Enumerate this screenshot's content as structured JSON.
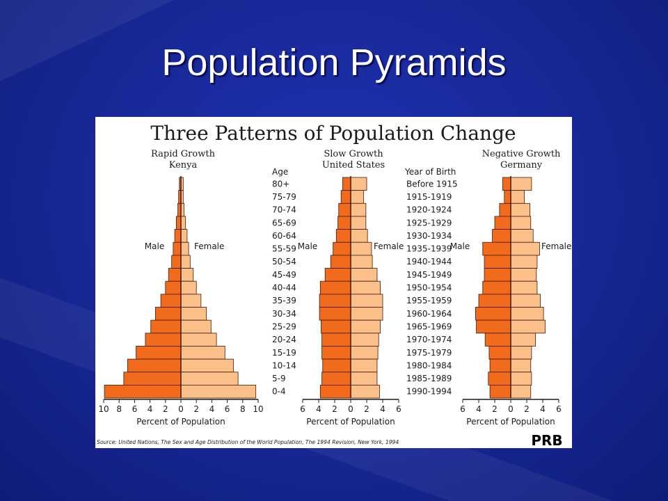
{
  "slide": {
    "title": "Population Pyramids"
  },
  "colors": {
    "male": "#f26b1d",
    "female": "#fbbf8a",
    "outline": "#3b1c0c",
    "ink": "#1a1a1a"
  },
  "chart_data": {
    "title": "Three Patterns of Population Change",
    "source": "Source: United Nations, The Sex and Age Distribution of the World Population, The 1994 Revision, New York, 1994",
    "logo_text": "PRB",
    "age_header": "Age",
    "birth_header": "Year of Birth",
    "age_groups": [
      "80+",
      "75-79",
      "70-74",
      "65-69",
      "60-64",
      "55-59",
      "50-54",
      "45-49",
      "40-44",
      "35-39",
      "30-34",
      "25-29",
      "20-24",
      "15-19",
      "10-14",
      "5-9",
      "0-4"
    ],
    "birth_years": [
      "Before 1915",
      "1915-1919",
      "1920-1924",
      "1925-1929",
      "1930-1934",
      "1935-1939",
      "1940-1944",
      "1945-1949",
      "1950-1954",
      "1955-1959",
      "1960-1964",
      "1965-1969",
      "1970-1974",
      "1975-1979",
      "1980-1984",
      "1985-1989",
      "1990-1994"
    ],
    "pyramids": [
      {
        "type": "bar",
        "title_line1": "Rapid Growth",
        "title_line2": "Kenya",
        "male_label": "Male",
        "female_label": "Female",
        "xlabel": "Percent of Population",
        "xticks": [
          "10",
          "8",
          "6",
          "4",
          "2",
          "0",
          "2",
          "4",
          "6",
          "8",
          "10"
        ],
        "xmax": 10,
        "male": [
          0.2,
          0.3,
          0.4,
          0.6,
          0.8,
          1.0,
          1.2,
          1.6,
          2.0,
          2.6,
          3.3,
          3.9,
          4.6,
          5.8,
          6.9,
          7.4,
          9.9
        ],
        "female": [
          0.3,
          0.3,
          0.4,
          0.6,
          0.8,
          1.0,
          1.2,
          1.6,
          2.0,
          2.6,
          3.3,
          3.9,
          4.6,
          5.7,
          6.8,
          7.4,
          9.7
        ]
      },
      {
        "type": "bar",
        "title_line1": "Slow Growth",
        "title_line2": "United States",
        "male_label": "Male",
        "female_label": "Female",
        "xlabel": "Percent of Population",
        "xticks": [
          "6",
          "4",
          "2",
          "0",
          "2",
          "4",
          "6"
        ],
        "xmax": 6,
        "male": [
          1.0,
          1.2,
          1.5,
          1.6,
          1.8,
          2.2,
          2.5,
          3.2,
          3.8,
          3.9,
          3.9,
          3.7,
          3.6,
          3.6,
          3.5,
          3.6,
          3.8
        ],
        "female": [
          2.0,
          1.6,
          1.9,
          1.9,
          2.1,
          2.6,
          2.7,
          3.3,
          3.7,
          4.0,
          4.0,
          3.7,
          3.5,
          3.4,
          3.3,
          3.3,
          3.6
        ]
      },
      {
        "type": "bar",
        "title_line1": "Negative Growth",
        "title_line2": "Germany",
        "male_label": "Male",
        "female_label": "Female",
        "xlabel": "Percent of Population",
        "xticks": [
          "6",
          "4",
          "2",
          "0",
          "2",
          "4",
          "6"
        ],
        "xmax": 6,
        "male": [
          1.0,
          0.8,
          1.4,
          2.0,
          2.3,
          3.5,
          3.3,
          3.3,
          3.5,
          4.0,
          4.4,
          4.3,
          3.2,
          2.7,
          2.6,
          2.8,
          2.6
        ],
        "female": [
          2.6,
          1.7,
          2.4,
          2.5,
          2.8,
          3.6,
          3.3,
          3.2,
          3.3,
          3.7,
          4.1,
          4.3,
          3.1,
          2.6,
          2.5,
          2.6,
          2.5
        ]
      }
    ]
  }
}
